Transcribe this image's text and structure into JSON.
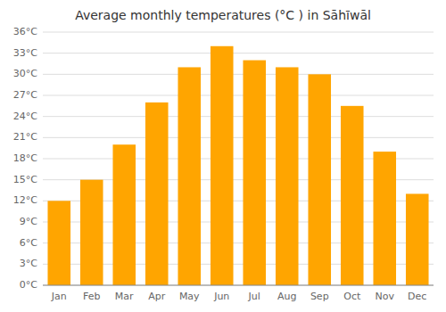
{
  "chart_data": {
    "type": "bar",
    "title": "Average monthly temperatures (°C ) in Sāhīwāl",
    "categories": [
      "Jan",
      "Feb",
      "Mar",
      "Apr",
      "May",
      "Jun",
      "Jul",
      "Aug",
      "Sep",
      "Oct",
      "Nov",
      "Dec"
    ],
    "values": [
      12,
      15,
      20,
      26,
      31,
      34,
      32,
      31,
      30,
      25.5,
      19,
      13
    ],
    "color": "#FFA500",
    "ylim": [
      0,
      36
    ],
    "yticks": [
      {
        "value": 0,
        "label": "0°C"
      },
      {
        "value": 3,
        "label": "3°C"
      },
      {
        "value": 6,
        "label": "6°C"
      },
      {
        "value": 9,
        "label": "9°C"
      },
      {
        "value": 12,
        "label": "12°C"
      },
      {
        "value": 15,
        "label": "15°C"
      },
      {
        "value": 18,
        "label": "18°C"
      },
      {
        "value": 21,
        "label": "21°C"
      },
      {
        "value": 24,
        "label": "24°C"
      },
      {
        "value": 27,
        "label": "27°C"
      },
      {
        "value": 30,
        "label": "30°C"
      },
      {
        "value": 33,
        "label": "33°C"
      },
      {
        "value": 36,
        "label": "36°C"
      }
    ],
    "grid": true
  }
}
